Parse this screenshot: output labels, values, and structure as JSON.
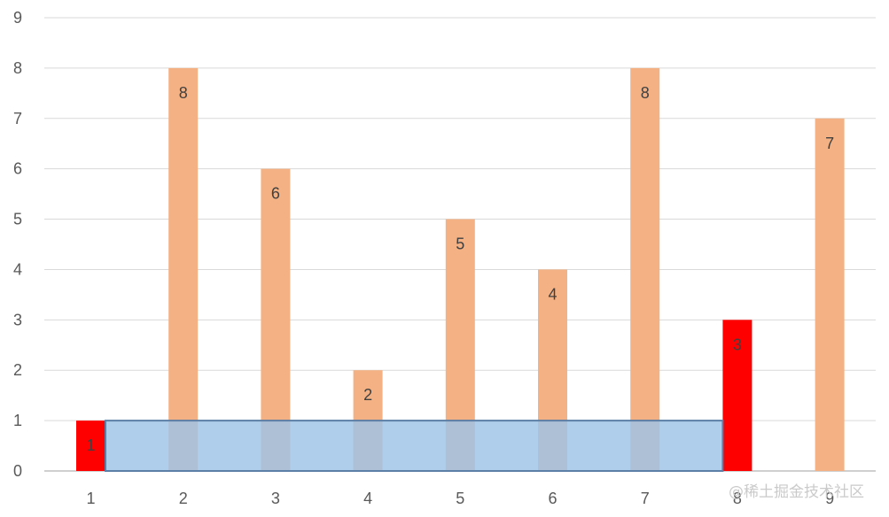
{
  "chart_data": {
    "type": "bar",
    "categories": [
      "1",
      "2",
      "3",
      "4",
      "5",
      "6",
      "7",
      "8",
      "9"
    ],
    "values": [
      1,
      8,
      6,
      2,
      5,
      4,
      8,
      3,
      7
    ],
    "highlighted_indices": [
      0,
      7
    ],
    "highlight_area": {
      "from_category": "1",
      "to_category": "8",
      "height": 1
    },
    "ylim": [
      0,
      9
    ],
    "yticks": [
      0,
      1,
      2,
      3,
      4,
      5,
      6,
      7,
      8,
      9
    ],
    "grid": true,
    "title": "",
    "xlabel": "",
    "ylabel": ""
  },
  "colors": {
    "bar": "#F4B183",
    "highlight_bar": "#FF0000",
    "highlight_area_fill": "#9DC3E6",
    "highlight_area_stroke": "#5B7FA6",
    "gridline": "#D9D9D9",
    "axis": "#BFBFBF"
  },
  "watermark": "@稀土掘金技术社区"
}
